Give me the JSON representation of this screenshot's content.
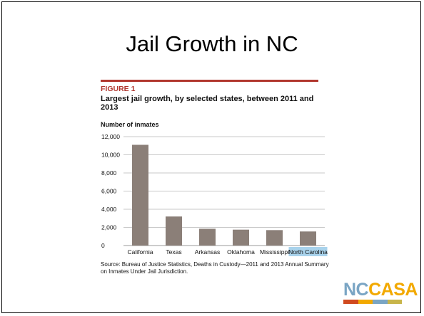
{
  "slide": {
    "title": "Jail Growth in NC"
  },
  "figure": {
    "label": "FIGURE 1",
    "caption": "Largest jail growth, by selected states, between 2011 and 2013",
    "source": "Source: Bureau of Justice Statistics, Deaths in Custody—2011 and 2013 Annual Summary on Inmates Under Jail Jurisdiction."
  },
  "logo": {
    "part1": "NC",
    "part2": "CASA",
    "colors": [
      "#d04a1f",
      "#f2a900",
      "#7aa5c4",
      "#c8b54a"
    ]
  },
  "colors": {
    "bar": "#8b7f78",
    "rule": "#b1362e",
    "highlight": "#a9d3ec",
    "grid": "#c8c8c8"
  },
  "chart_data": {
    "type": "bar",
    "categories": [
      "California",
      "Texas",
      "Arkansas",
      "Oklahoma",
      "Mississippi",
      "North Carolina"
    ],
    "values": [
      11100,
      3200,
      1850,
      1750,
      1700,
      1550
    ],
    "highlight_category": "North Carolina",
    "title": "Largest jail growth, by selected states, between 2011 and 2013",
    "ylabel": "Number of inmates",
    "xlabel": "",
    "ylim": [
      0,
      12000
    ],
    "yticks": [
      0,
      2000,
      4000,
      6000,
      8000,
      10000,
      12000
    ],
    "ytick_labels": [
      "0",
      "2,000",
      "4,000",
      "6,000",
      "8,000",
      "10,000",
      "12,000"
    ],
    "grid": true,
    "legend": "none"
  }
}
